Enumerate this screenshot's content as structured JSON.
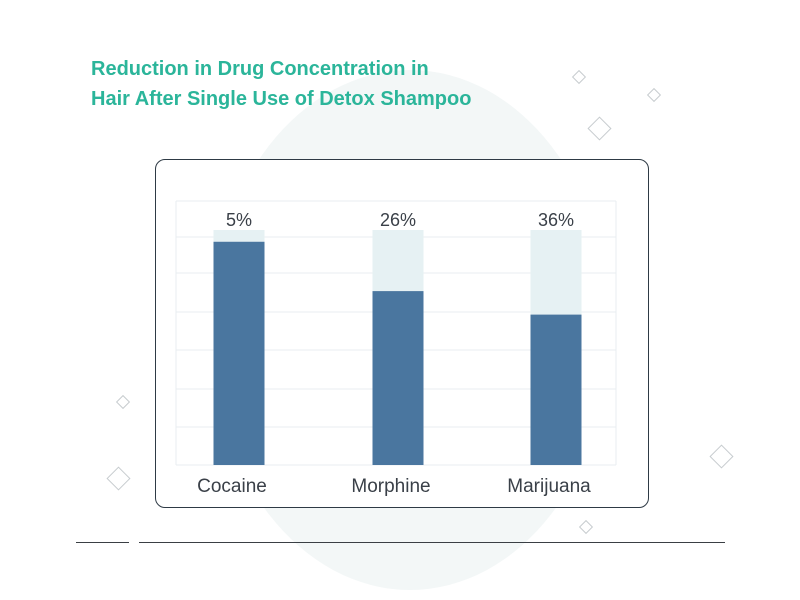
{
  "title_lines": [
    "Reduction in Drug Concentration in",
    "Hair After Single Use of Detox Shampoo"
  ],
  "colors": {
    "title": "#2bb59a",
    "bar": "#4a769f",
    "bar_remainder": "#e6f1f3",
    "grid": "#e9eef0",
    "label": "#3a4048",
    "frame": "#2e3a45"
  },
  "chart_data": {
    "type": "bar",
    "title": "Reduction in Drug Concentration in Hair After Single Use of Detox Shampoo",
    "xlabel": "",
    "ylabel": "",
    "categories": [
      "Cocaine",
      "Morphine",
      "Marijuana"
    ],
    "series": [
      {
        "values": [
          5,
          26,
          36
        ]
      }
    ],
    "data_labels": [
      "5%",
      "26%",
      "36%"
    ],
    "ylim": [
      0,
      100
    ],
    "grid": true,
    "legend": "none"
  }
}
